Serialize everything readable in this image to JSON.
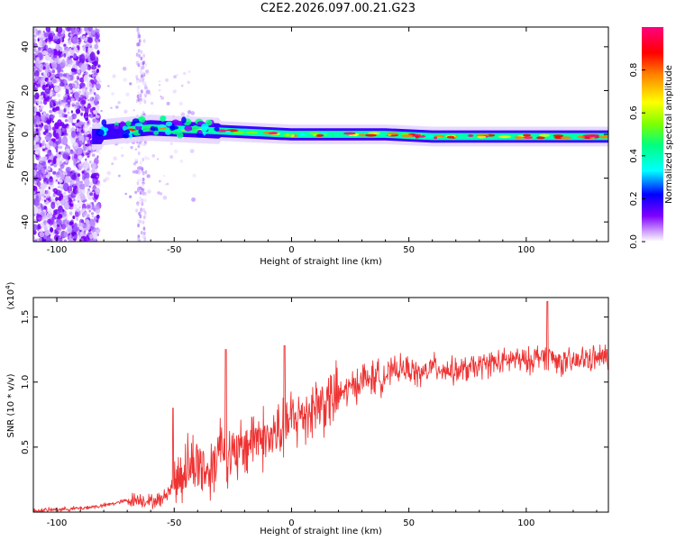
{
  "title": "C2E2.2026.097.00.21.G23",
  "chart_data": [
    {
      "type": "heatmap",
      "name": "spectrogram",
      "title": "C2E2.2026.097.00.21.G23",
      "xlabel": "Height of straight line (km)",
      "ylabel": "Frequency (Hz)",
      "xlim": [
        -110,
        135
      ],
      "ylim": [
        -49,
        49
      ],
      "xticks": [
        -100,
        -50,
        0,
        50,
        100
      ],
      "xtick_labels": [
        "-100",
        "-50",
        "0",
        "50",
        "100"
      ],
      "yticks": [
        -40,
        -20,
        0,
        20,
        40
      ],
      "ytick_labels": [
        "-40",
        "-20",
        "0",
        "20",
        "40"
      ],
      "colorbar": {
        "label": "Normalized spectral amplitude",
        "range": [
          0,
          1
        ],
        "ticks": [
          0.0,
          0.2,
          0.4,
          0.6,
          0.8
        ],
        "tick_labels": [
          "0.0",
          "0.2",
          "0.4",
          "0.6",
          "0.8"
        ],
        "colors": [
          "#ffffff",
          "#cc99ff",
          "#7f00ff",
          "#0000ff",
          "#00ffff",
          "#00ff80",
          "#80ff00",
          "#ffff00",
          "#ff8000",
          "#ff0000",
          "#ff0080"
        ]
      },
      "ridge": {
        "description": "narrow band centered near 0 Hz",
        "x": [
          -80,
          -60,
          -40,
          -20,
          0,
          20,
          40,
          60,
          80,
          100,
          120,
          135
        ],
        "center_hz": [
          1,
          3,
          2,
          1,
          0,
          0,
          0,
          -1,
          -1,
          -1,
          -1,
          -1
        ],
        "amplitude": [
          0.45,
          0.55,
          0.6,
          0.75,
          0.8,
          0.55,
          0.55,
          0.7,
          0.85,
          0.9,
          0.8,
          0.75
        ]
      }
    },
    {
      "type": "line",
      "name": "snr",
      "xlabel": "Height of straight line (km)",
      "ylabel": "SNR (10 * v/v)",
      "scale_label": "(x10",
      "scale_exp": "4",
      "xlim": [
        -110,
        135
      ],
      "ylim": [
        0,
        1.65
      ],
      "xticks": [
        -100,
        -50,
        0,
        50,
        100
      ],
      "xtick_labels": [
        "-100",
        "-50",
        "0",
        "50",
        "100"
      ],
      "yticks": [
        0.5,
        1.0,
        1.5
      ],
      "ytick_labels": [
        "0.5",
        "1.0",
        "1.5"
      ],
      "color": "#ee3333",
      "x": [
        -110,
        -100,
        -90,
        -80,
        -70,
        -65,
        -60,
        -55,
        -50,
        -45,
        -40,
        -35,
        -30,
        -25,
        -20,
        -15,
        -10,
        -5,
        0,
        5,
        10,
        15,
        20,
        25,
        30,
        35,
        40,
        45,
        50,
        55,
        60,
        65,
        70,
        75,
        80,
        85,
        90,
        95,
        100,
        105,
        110,
        115,
        120,
        125,
        130,
        135
      ],
      "y": [
        0.01,
        0.02,
        0.03,
        0.05,
        0.09,
        0.1,
        0.08,
        0.1,
        0.22,
        0.35,
        0.38,
        0.3,
        0.55,
        0.4,
        0.5,
        0.6,
        0.55,
        0.62,
        0.7,
        0.75,
        0.82,
        0.85,
        0.9,
        0.95,
        1.02,
        1.03,
        1.05,
        1.1,
        1.1,
        1.05,
        1.12,
        1.1,
        1.08,
        1.1,
        1.12,
        1.15,
        1.15,
        1.18,
        1.15,
        1.2,
        1.2,
        1.15,
        1.15,
        1.18,
        1.18,
        1.2
      ],
      "spikes": [
        {
          "x": -50.5,
          "y": 0.8
        },
        {
          "x": -28,
          "y": 1.25
        },
        {
          "x": -3,
          "y": 1.28
        },
        {
          "x": 109,
          "y": 1.62
        }
      ]
    }
  ]
}
